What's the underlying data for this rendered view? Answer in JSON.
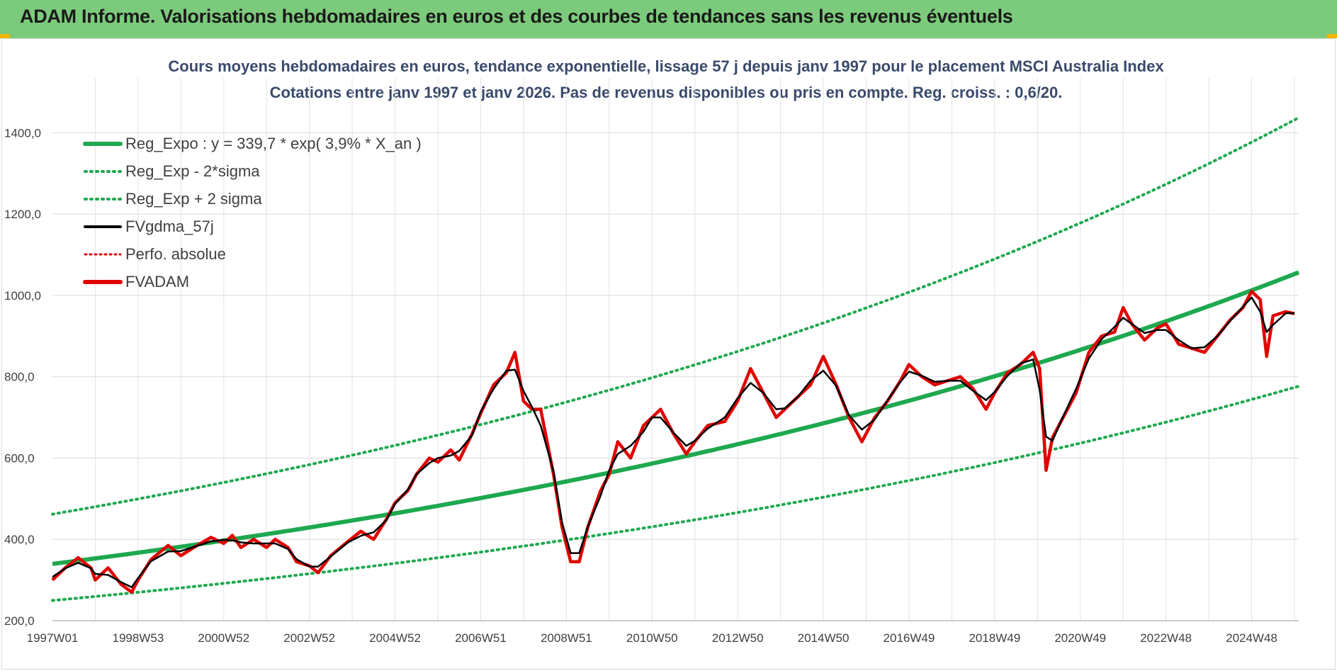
{
  "header": {
    "title": "ADAM Informe. Valorisations hebdomadaires en euros et des courbes de tendances sans les revenus éventuels",
    "background": "#7ccb7c",
    "accent": "#f2b600"
  },
  "chart_data": {
    "type": "line",
    "title_line1": "Cours moyens hebdomadaires en euros, tendance exponentielle, lissage 57 j depuis janv 1997 pour le placement MSCI Australia Index",
    "title_line2": "Cotations entre janv 1997 et janv 2026. Pas de revenus disponibles ou pris en compte. Reg. croiss. : 0,6/20.",
    "xlabel": "",
    "ylabel": "",
    "xlim": [
      1997.0,
      2026.1
    ],
    "ylim": [
      200,
      1500
    ],
    "grid": true,
    "legend_position": "top-left",
    "x_ticks": [
      {
        "label": "1997W01",
        "x": 1997.0
      },
      {
        "label": "1998W53",
        "x": 1999.0
      },
      {
        "label": "2000W52",
        "x": 2001.0
      },
      {
        "label": "2002W52",
        "x": 2003.0
      },
      {
        "label": "2004W52",
        "x": 2005.0
      },
      {
        "label": "2006W51",
        "x": 2007.0
      },
      {
        "label": "2008W51",
        "x": 2009.0
      },
      {
        "label": "2010W50",
        "x": 2011.0
      },
      {
        "label": "2012W50",
        "x": 2013.0
      },
      {
        "label": "2014W50",
        "x": 2015.0
      },
      {
        "label": "2016W49",
        "x": 2017.0
      },
      {
        "label": "2018W49",
        "x": 2019.0
      },
      {
        "label": "2020W49",
        "x": 2021.0
      },
      {
        "label": "2022W48",
        "x": 2023.0
      },
      {
        "label": "2024W48",
        "x": 2025.0
      }
    ],
    "y_ticks": [
      {
        "label": "200,0",
        "y": 200
      },
      {
        "label": "400,0",
        "y": 400
      },
      {
        "label": "600,0",
        "y": 600
      },
      {
        "label": "800,0",
        "y": 800
      },
      {
        "label": "1000,0",
        "y": 1000
      },
      {
        "label": "1200,0",
        "y": 1200
      },
      {
        "label": "1400,0",
        "y": 1400
      }
    ],
    "regression": {
      "a": 339.7,
      "rate": 0.039,
      "sigma_low": 0.735,
      "sigma_high": 1.36
    },
    "series": [
      {
        "name": "Reg_Expo : y = 339,7 * exp( 3,9% *  X_an )",
        "color": "#1ea84f",
        "style": "solid-thick"
      },
      {
        "name": "Reg_Exp - 2*sigma",
        "color": "#1ea84f",
        "style": "dotted"
      },
      {
        "name": "Reg_Exp + 2 sigma",
        "color": "#1ea84f",
        "style": "dotted"
      },
      {
        "name": "FVgdma_57j",
        "color": "#000000",
        "style": "solid"
      },
      {
        "name": "Perfo. absolue",
        "color": "#e00000",
        "style": "dotted-thin"
      },
      {
        "name": "FVADAM",
        "color": "#e00000",
        "style": "solid-thick"
      }
    ],
    "price_points": [
      [
        1997.0,
        300
      ],
      [
        1997.3,
        330
      ],
      [
        1997.6,
        355
      ],
      [
        1997.9,
        330
      ],
      [
        1998.0,
        300
      ],
      [
        1998.3,
        330
      ],
      [
        1998.6,
        290
      ],
      [
        1998.85,
        270
      ],
      [
        1999.0,
        300
      ],
      [
        1999.3,
        350
      ],
      [
        1999.7,
        385
      ],
      [
        2000.0,
        360
      ],
      [
        2000.3,
        380
      ],
      [
        2000.7,
        405
      ],
      [
        2001.0,
        390
      ],
      [
        2001.2,
        410
      ],
      [
        2001.4,
        380
      ],
      [
        2001.7,
        400
      ],
      [
        2002.0,
        380
      ],
      [
        2002.2,
        400
      ],
      [
        2002.5,
        380
      ],
      [
        2002.7,
        345
      ],
      [
        2003.0,
        335
      ],
      [
        2003.2,
        318
      ],
      [
        2003.5,
        360
      ],
      [
        2003.9,
        395
      ],
      [
        2004.2,
        420
      ],
      [
        2004.5,
        400
      ],
      [
        2004.8,
        450
      ],
      [
        2005.0,
        490
      ],
      [
        2005.3,
        520
      ],
      [
        2005.5,
        560
      ],
      [
        2005.8,
        600
      ],
      [
        2006.0,
        590
      ],
      [
        2006.3,
        620
      ],
      [
        2006.5,
        595
      ],
      [
        2006.8,
        660
      ],
      [
        2007.0,
        710
      ],
      [
        2007.3,
        780
      ],
      [
        2007.6,
        810
      ],
      [
        2007.8,
        860
      ],
      [
        2008.0,
        740
      ],
      [
        2008.2,
        720
      ],
      [
        2008.4,
        720
      ],
      [
        2008.7,
        560
      ],
      [
        2008.9,
        430
      ],
      [
        2009.1,
        345
      ],
      [
        2009.3,
        345
      ],
      [
        2009.5,
        430
      ],
      [
        2009.8,
        520
      ],
      [
        2010.0,
        560
      ],
      [
        2010.2,
        640
      ],
      [
        2010.5,
        600
      ],
      [
        2010.8,
        680
      ],
      [
        2011.0,
        700
      ],
      [
        2011.2,
        720
      ],
      [
        2011.5,
        660
      ],
      [
        2011.8,
        610
      ],
      [
        2012.0,
        640
      ],
      [
        2012.3,
        680
      ],
      [
        2012.7,
        690
      ],
      [
        2013.0,
        740
      ],
      [
        2013.3,
        820
      ],
      [
        2013.6,
        760
      ],
      [
        2013.9,
        700
      ],
      [
        2014.1,
        720
      ],
      [
        2014.4,
        750
      ],
      [
        2014.7,
        780
      ],
      [
        2015.0,
        850
      ],
      [
        2015.3,
        780
      ],
      [
        2015.6,
        700
      ],
      [
        2015.9,
        640
      ],
      [
        2016.2,
        700
      ],
      [
        2016.5,
        740
      ],
      [
        2016.8,
        790
      ],
      [
        2017.0,
        830
      ],
      [
        2017.3,
        800
      ],
      [
        2017.6,
        780
      ],
      [
        2017.9,
        790
      ],
      [
        2018.2,
        800
      ],
      [
        2018.5,
        770
      ],
      [
        2018.8,
        720
      ],
      [
        2019.0,
        760
      ],
      [
        2019.3,
        810
      ],
      [
        2019.6,
        830
      ],
      [
        2019.9,
        860
      ],
      [
        2020.05,
        820
      ],
      [
        2020.2,
        570
      ],
      [
        2020.35,
        650
      ],
      [
        2020.6,
        700
      ],
      [
        2020.9,
        760
      ],
      [
        2021.2,
        860
      ],
      [
        2021.5,
        900
      ],
      [
        2021.8,
        910
      ],
      [
        2022.0,
        970
      ],
      [
        2022.2,
        930
      ],
      [
        2022.5,
        890
      ],
      [
        2022.8,
        920
      ],
      [
        2023.0,
        930
      ],
      [
        2023.3,
        880
      ],
      [
        2023.6,
        870
      ],
      [
        2023.9,
        860
      ],
      [
        2024.2,
        900
      ],
      [
        2024.5,
        940
      ],
      [
        2024.8,
        970
      ],
      [
        2025.0,
        1010
      ],
      [
        2025.2,
        990
      ],
      [
        2025.35,
        850
      ],
      [
        2025.5,
        950
      ],
      [
        2025.8,
        960
      ],
      [
        2026.0,
        955
      ]
    ]
  }
}
